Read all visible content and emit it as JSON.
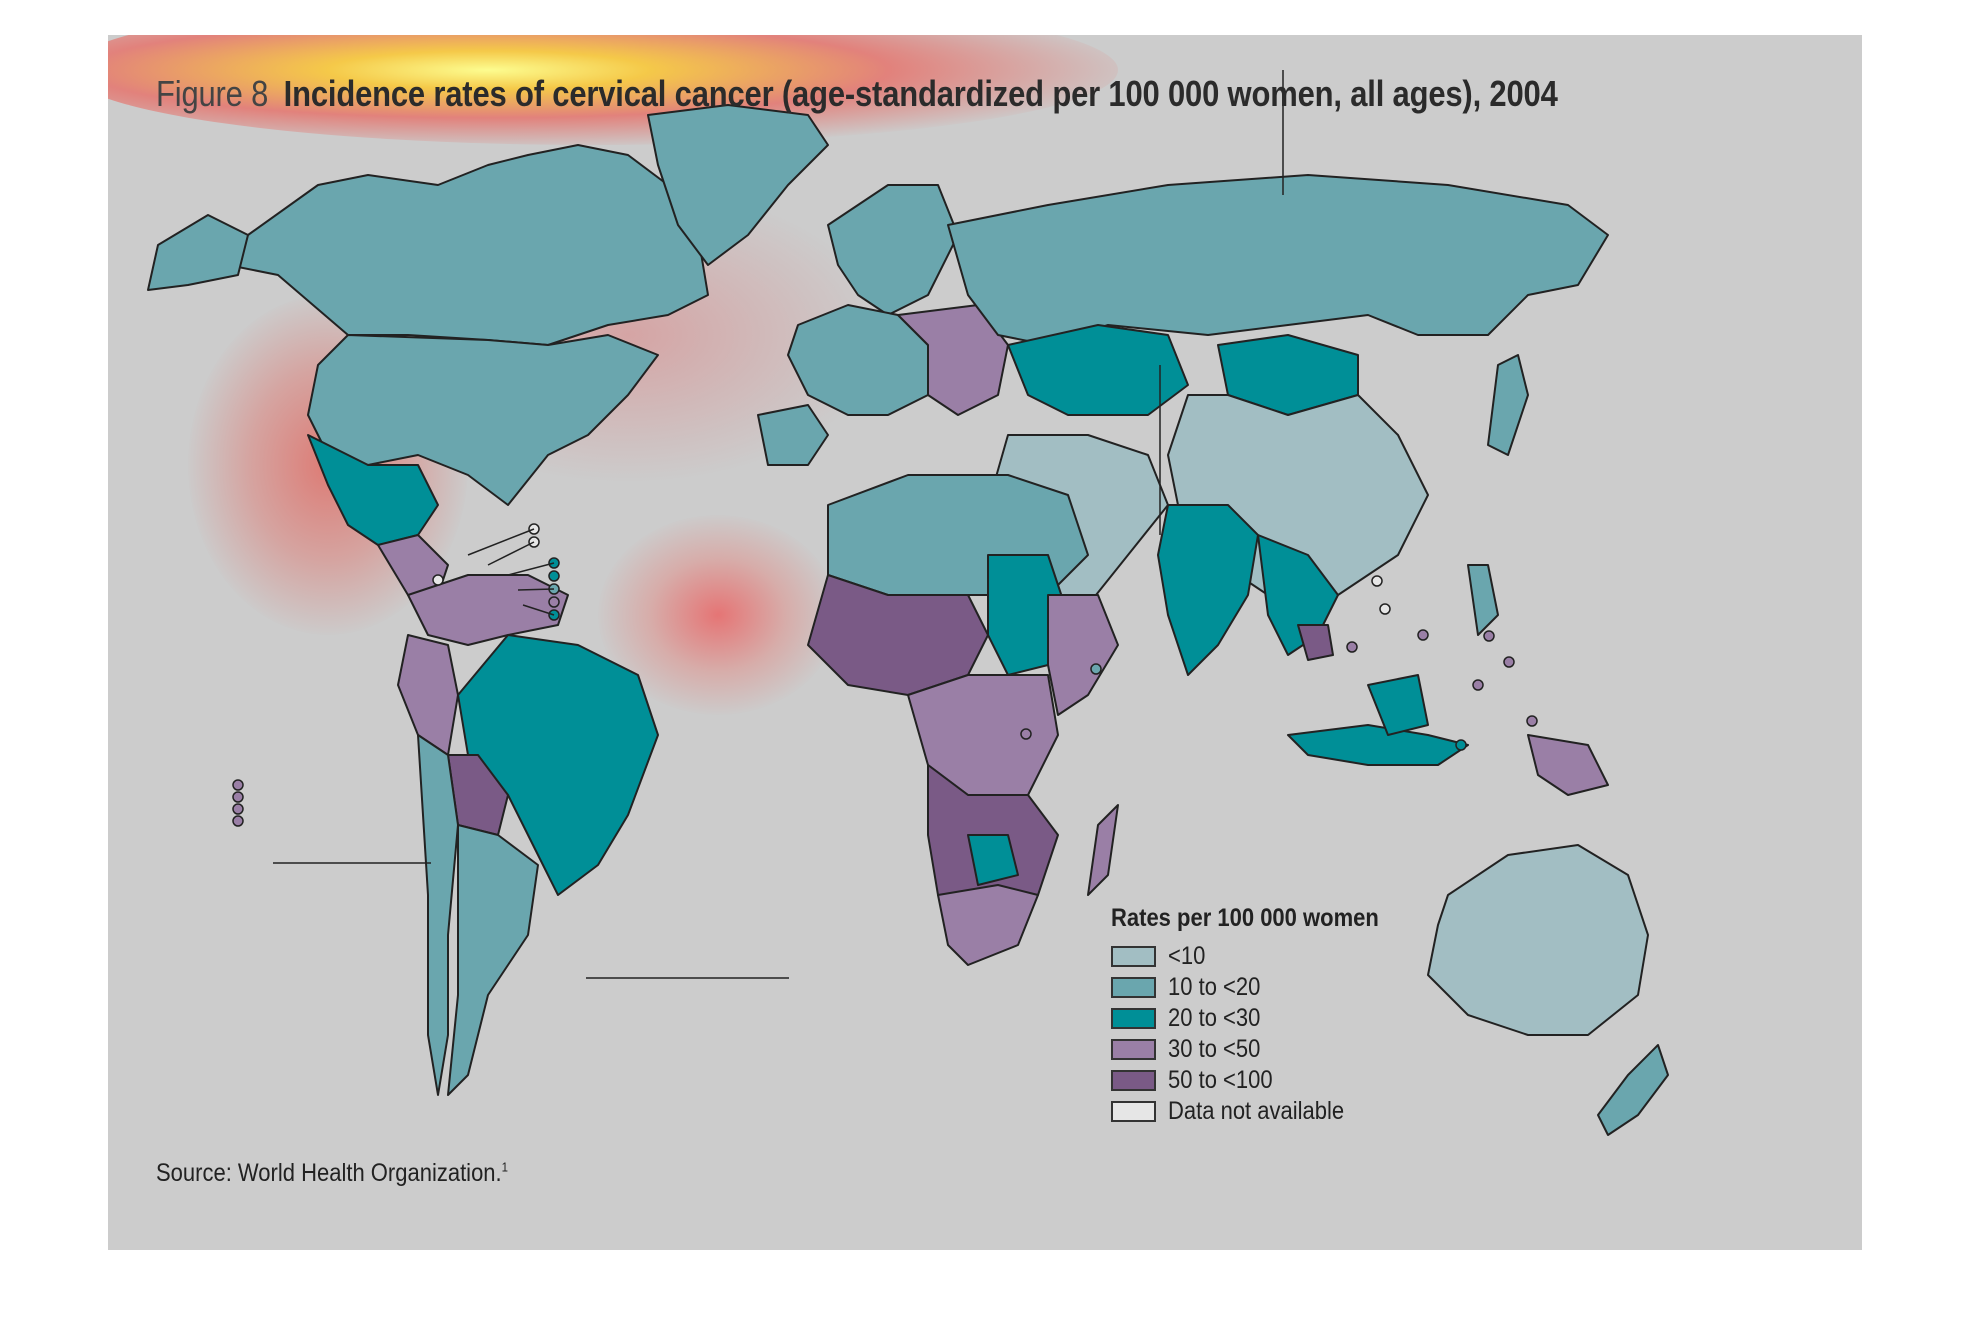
{
  "figure": {
    "label": "Figure 8",
    "title": "Incidence rates of cervical cancer (age-standardized per 100 000 women, all ages), 2004"
  },
  "legend": {
    "title": "Rates per 100 000 women",
    "items": [
      {
        "label": "<10",
        "color": "#a2bec3"
      },
      {
        "label": "10 to <20",
        "color": "#6aa6ae"
      },
      {
        "label": "20 to <30",
        "color": "#008f97"
      },
      {
        "label": "30 to <50",
        "color": "#9a7fa6"
      },
      {
        "label": "50 to <100",
        "color": "#7a5a86"
      },
      {
        "label": "Data not available",
        "color": "#e6e6e6"
      }
    ]
  },
  "source": {
    "text": "Source: World Health Organization.",
    "note_marker": "1"
  },
  "colors": {
    "background": "#cccccc",
    "border": "#222222",
    "heat_overlay": "#ff3b30"
  }
}
